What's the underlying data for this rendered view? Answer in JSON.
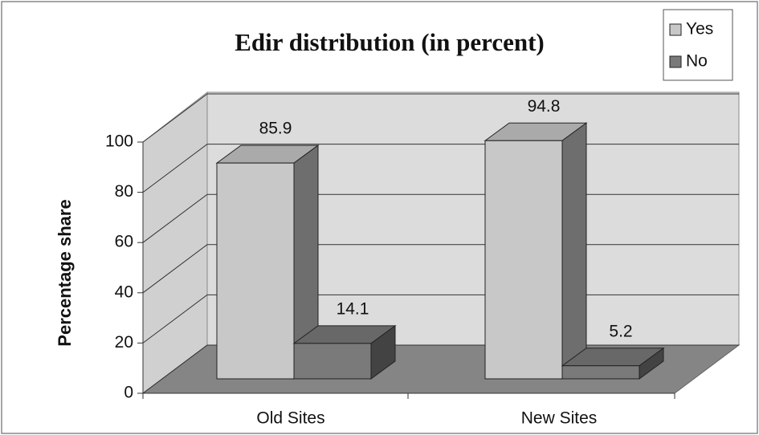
{
  "chart_data": {
    "type": "bar3d",
    "title": "Edir distribution (in percent)",
    "ylabel": "Percentage share",
    "categories": [
      "Old Sites",
      "New Sites"
    ],
    "series": [
      {
        "name": "Yes",
        "color": "#c8c8c8",
        "values": [
          85.9,
          94.8
        ]
      },
      {
        "name": "No",
        "color": "#7a7a7a",
        "values": [
          14.1,
          5.2
        ]
      }
    ],
    "ylim": [
      0,
      100
    ],
    "yticks": [
      0,
      20,
      40,
      60,
      80,
      100
    ],
    "grid": true,
    "legend": "upper right"
  }
}
